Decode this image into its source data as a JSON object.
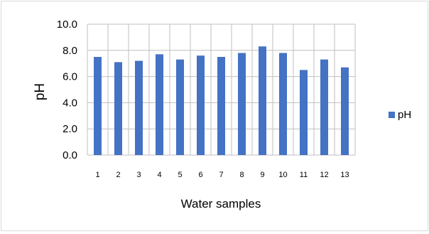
{
  "chart_data": {
    "type": "bar",
    "categories": [
      "1",
      "2",
      "3",
      "4",
      "5",
      "6",
      "7",
      "8",
      "9",
      "10",
      "11",
      "12",
      "13"
    ],
    "series": [
      {
        "name": "pH",
        "values": [
          7.5,
          7.1,
          7.2,
          7.7,
          7.3,
          7.6,
          7.5,
          7.8,
          8.3,
          7.8,
          6.5,
          7.3,
          6.7
        ]
      }
    ],
    "title": "",
    "xlabel": "Water samples",
    "ylabel": "pH",
    "ylim": [
      0,
      10
    ],
    "y_ticks": [
      "0.0",
      "2.0",
      "4.0",
      "6.0",
      "8.0",
      "10.0"
    ],
    "grid": "both",
    "legend_position": "right",
    "bar_color": "#4472c4",
    "grid_color": "#bfbfbf"
  }
}
